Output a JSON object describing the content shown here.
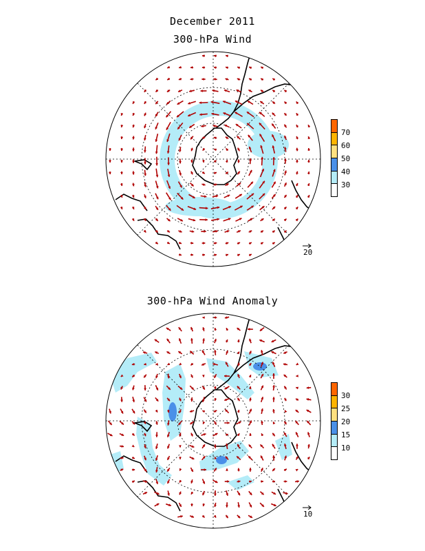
{
  "figure": {
    "title": "December 2011",
    "panel1_title": "300-hPa Wind",
    "panel2_title": "300-hPa Wind Anomaly"
  },
  "panel1": {
    "colorbar": {
      "ticks": [
        "70",
        "60",
        "50",
        "40",
        "30"
      ],
      "colors": [
        "#ff6600",
        "#ffb400",
        "#ffe080",
        "#4a90e8",
        "#b4ecf8",
        "#ffffff"
      ]
    },
    "reference_vector": "20"
  },
  "panel2": {
    "colorbar": {
      "ticks": [
        "30",
        "25",
        "20",
        "15",
        "10"
      ],
      "colors": [
        "#ff6600",
        "#ffb400",
        "#ffe080",
        "#4a90e8",
        "#b4ecf8",
        "#ffffff"
      ]
    },
    "reference_vector": "10"
  },
  "colors": {
    "vector": "#b00000",
    "shade_light": "#b4ecf8",
    "shade_mid": "#4a90e8",
    "coast": "#000000"
  }
}
